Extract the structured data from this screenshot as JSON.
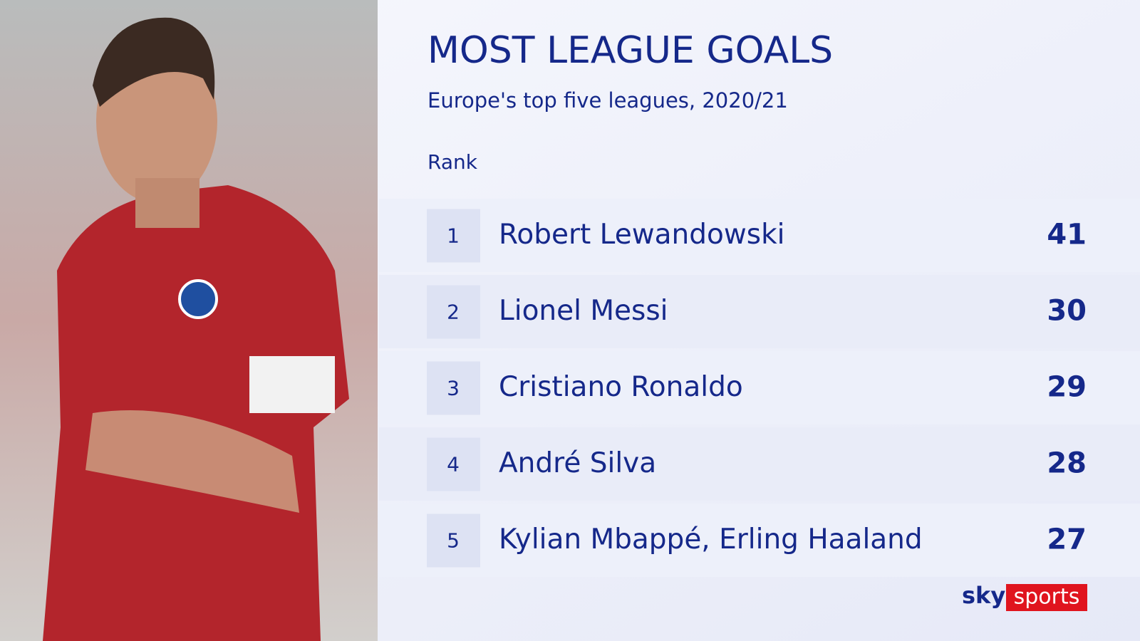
{
  "header": {
    "title": "MOST LEAGUE GOALS",
    "subtitle": "Europe's top five leagues, 2020/21"
  },
  "table": {
    "column_label": "Rank",
    "rows": [
      {
        "rank": 1,
        "name": "Robert Lewandowski",
        "goals": 41
      },
      {
        "rank": 2,
        "name": "Lionel Messi",
        "goals": 30
      },
      {
        "rank": 3,
        "name": "Cristiano Ronaldo",
        "goals": 29
      },
      {
        "rank": 4,
        "name": "André Silva",
        "goals": 28
      },
      {
        "rank": 5,
        "name": "Kylian Mbappé, Erling Haaland",
        "goals": 27
      }
    ]
  },
  "logo": {
    "sky": "sky",
    "sports": "sports"
  }
}
